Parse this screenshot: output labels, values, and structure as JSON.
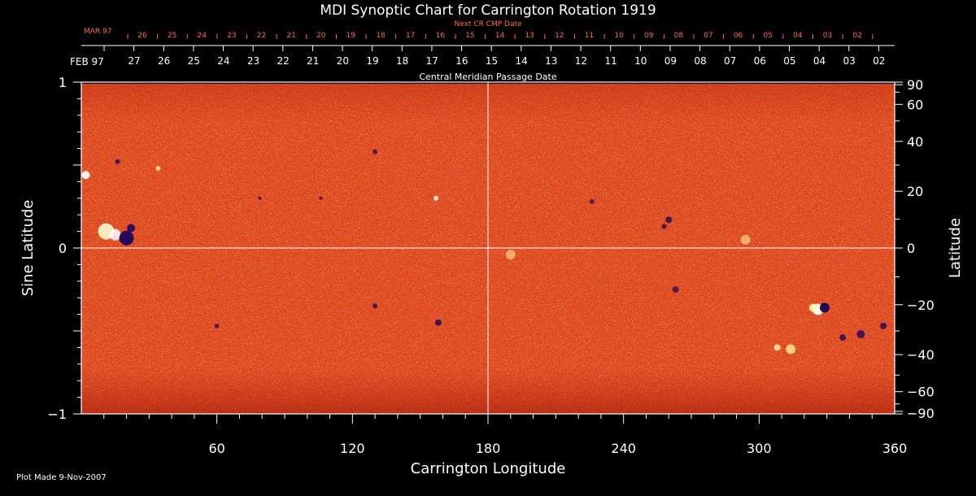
{
  "colors": {
    "background": "#000000",
    "text": "#ffffff",
    "next_cr_text": "#ff6a3d",
    "map_low": "#2a0a7a",
    "map_mid": "#e8460f",
    "map_high": "#ffffc8"
  },
  "chart_data": {
    "type": "heatmap",
    "title": "MDI Synoptic Chart for Carrington Rotation 1919",
    "xlabel": "Carrington Longitude",
    "ylabel_left": "Sine Latitude",
    "ylabel_right": "Latitude",
    "xlim": [
      0,
      360
    ],
    "ylim_sine": [
      -1,
      1
    ],
    "x_ticks": [
      60,
      120,
      180,
      240,
      300,
      360
    ],
    "y_ticks_left": [
      {
        "value": 1,
        "label": "1"
      },
      {
        "value": 0,
        "label": "0"
      },
      {
        "value": -1,
        "label": "−1"
      }
    ],
    "y_ticks_right": [
      {
        "lat": 90,
        "label": "90"
      },
      {
        "lat": 60,
        "label": "60"
      },
      {
        "lat": 40,
        "label": "40"
      },
      {
        "lat": 20,
        "label": "20"
      },
      {
        "lat": 0,
        "label": "0"
      },
      {
        "lat": -20,
        "label": "−20"
      },
      {
        "lat": -40,
        "label": "−40"
      },
      {
        "lat": -60,
        "label": "−60"
      },
      {
        "lat": -90,
        "label": "−90"
      }
    ],
    "crosshair": {
      "longitude": 180,
      "sine_latitude": 0
    },
    "cmp_axis": {
      "label": "Central Meridian Passage Date",
      "start_month": "FEB 97",
      "days": [
        "27",
        "26",
        "25",
        "24",
        "23",
        "22",
        "21",
        "20",
        "19",
        "18",
        "17",
        "16",
        "15",
        "14",
        "13",
        "12",
        "11",
        "10",
        "09",
        "08",
        "07",
        "06",
        "05",
        "04",
        "03",
        "02"
      ]
    },
    "next_cr_axis": {
      "label": "Next CR CMP Date",
      "start_month": "MAR 97",
      "days": [
        "26",
        "25",
        "24",
        "23",
        "22",
        "21",
        "20",
        "19",
        "18",
        "17",
        "16",
        "15",
        "14",
        "13",
        "12",
        "11",
        "10",
        "09",
        "08",
        "07",
        "06",
        "05",
        "04",
        "03",
        "02"
      ]
    },
    "footer": "Plot Made  9-Nov-2007"
  }
}
